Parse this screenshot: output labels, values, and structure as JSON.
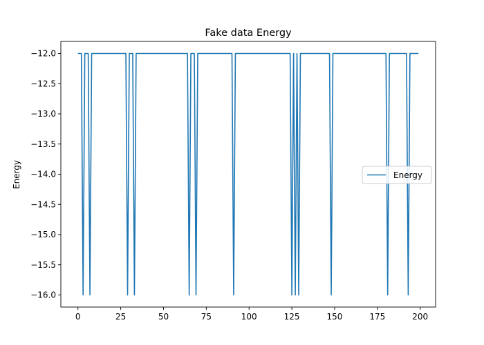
{
  "chart_data": {
    "type": "line",
    "title": "Fake data Energy",
    "xlabel": "",
    "ylabel": "Energy",
    "xlim": [
      -10,
      209
    ],
    "ylim": [
      -16.2,
      -11.8
    ],
    "xticks": [
      0,
      25,
      50,
      75,
      100,
      125,
      150,
      175,
      200
    ],
    "xtick_labels": [
      "0",
      "25",
      "50",
      "75",
      "100",
      "125",
      "150",
      "175",
      "200"
    ],
    "yticks": [
      -12.0,
      -12.5,
      -13.0,
      -13.5,
      -14.0,
      -14.5,
      -15.0,
      -15.5,
      -16.0
    ],
    "ytick_labels": [
      "−12.0",
      "−12.5",
      "−13.0",
      "−13.5",
      "−14.0",
      "−14.5",
      "−15.0",
      "−15.5",
      "−16.0"
    ],
    "grid": false,
    "legend_position": "center-right",
    "series": [
      {
        "name": "Energy",
        "color": "#1f77b4",
        "x_start": 0,
        "x_end": 199,
        "baseline": -12.0,
        "dip_value": -16.0,
        "dip_x": [
          3,
          7,
          29,
          33,
          65,
          69,
          91,
          125,
          127,
          129,
          148,
          181,
          193
        ]
      }
    ]
  }
}
